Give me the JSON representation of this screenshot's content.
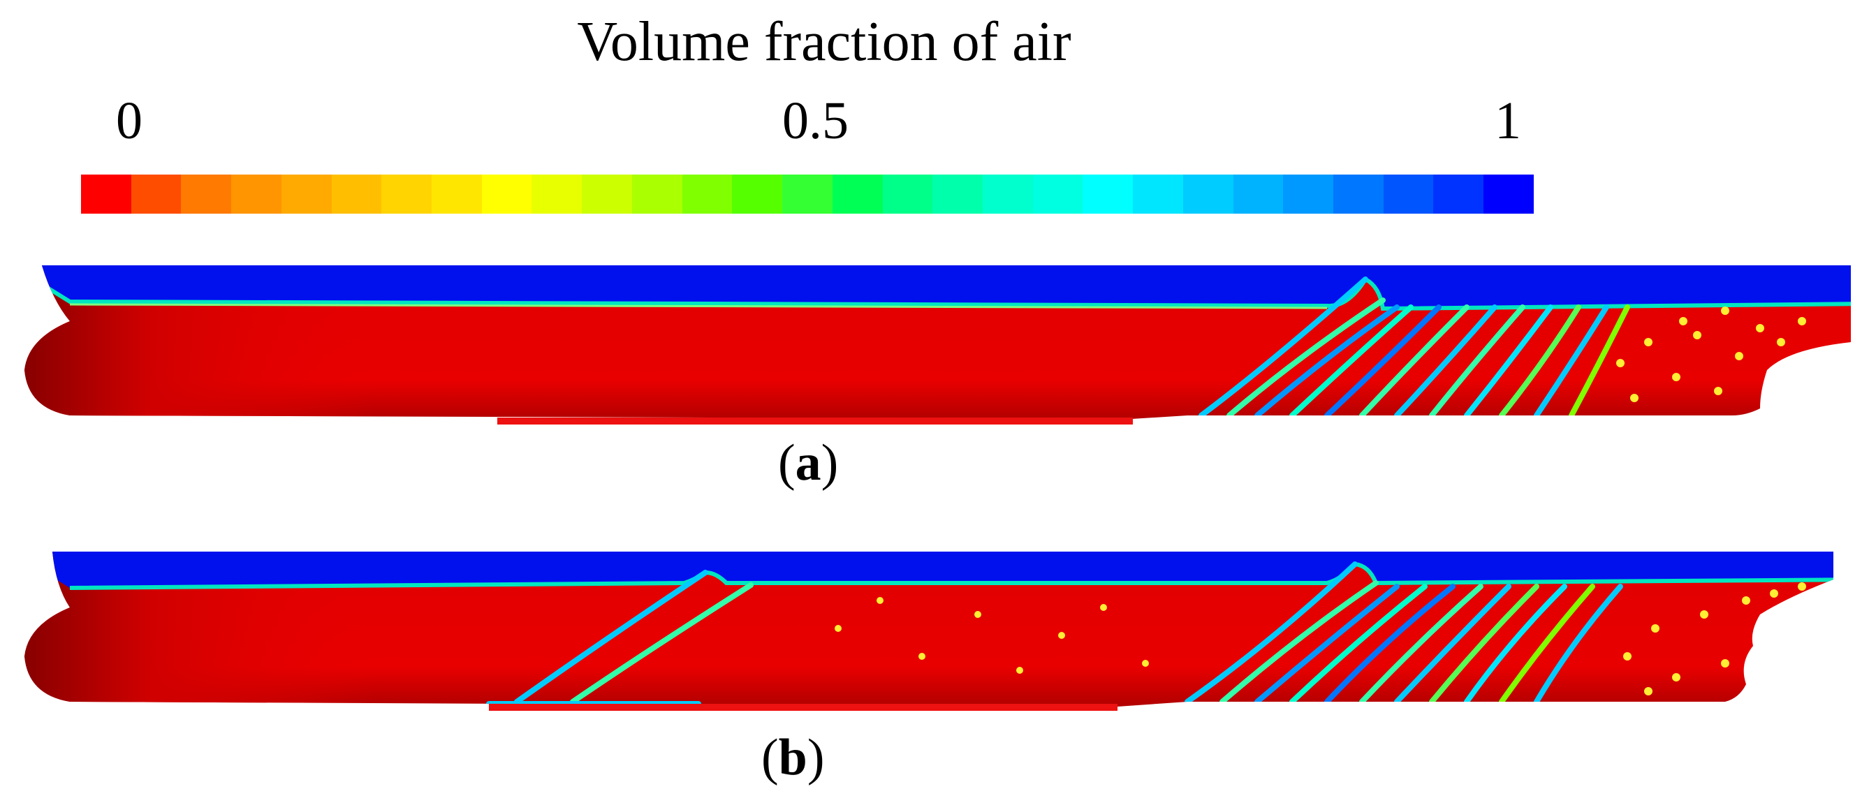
{
  "legend": {
    "title": "Volume fraction of air",
    "ticks": [
      "0",
      "0.5",
      "1"
    ],
    "colors": [
      "#ff0000",
      "#ff4d00",
      "#ff7a00",
      "#ff9500",
      "#ffaa00",
      "#ffbf00",
      "#ffd400",
      "#ffe600",
      "#ffff00",
      "#e8ff00",
      "#ccff00",
      "#aaff00",
      "#80ff00",
      "#55ff00",
      "#33ff33",
      "#00ff55",
      "#00ff88",
      "#00ffaa",
      "#00ffcc",
      "#00ffe0",
      "#00ffff",
      "#00e6ff",
      "#00ccff",
      "#00b3ff",
      "#0099ff",
      "#0077ff",
      "#0055ff",
      "#0033ff",
      "#0000ff"
    ]
  },
  "panels": [
    {
      "id": "a",
      "label": "a"
    },
    {
      "id": "b",
      "label": "b"
    }
  ]
}
